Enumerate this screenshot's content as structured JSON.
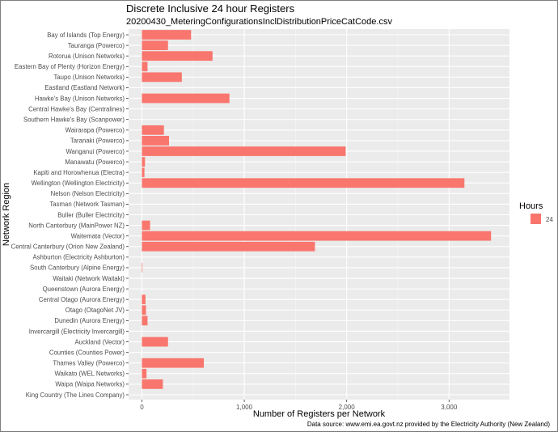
{
  "chart_data": {
    "type": "bar",
    "orientation": "horizontal",
    "title": "Discrete Inclusive 24 hour Registers",
    "subtitle": "20200430_MeteringConfigurationsInclDistributionPriceCatCode.csv",
    "xlabel": "Number of Registers per Network",
    "ylabel": "Network Region",
    "caption": "Data source: www.emi.ea.govt.nz provided by the Electricity Authority (New Zealand)",
    "xlim": [
      -130,
      3590
    ],
    "xticks": [
      0,
      1000,
      2000,
      3000
    ],
    "xtick_labels": [
      "0",
      "1,000",
      "2,000",
      "3,000"
    ],
    "grid": true,
    "legend": {
      "title": "Hours",
      "position": "right",
      "entries": [
        {
          "label": "24",
          "color": "#F8766D"
        }
      ]
    },
    "colors": {
      "bar": "#F8766D",
      "panel": "#EBEBEB",
      "grid_major": "#FFFFFF",
      "grid_minor": "#F5F5F5",
      "text": "#4D4D4D"
    },
    "categories": [
      "Bay of Islands (Top Energy)",
      "Tauranga (Powerco)",
      "Rotorua (Unison Networks)",
      "Eastern Bay of Plenty (Horizon Energy)",
      "Taupo (Unison Networks)",
      "Eastland (Eastland Network)",
      "Hawke's Bay (Unison Networks)",
      "Central Hawke's Bay (Centralines)",
      "Southern Hawke's Bay (Scanpower)",
      "Wairarapa (Powerco)",
      "Taranaki (Powerco)",
      "Wanganui (Powerco)",
      "Manawatu (Powerco)",
      "Kapiti and Horowhenua (Electra)",
      "Wellington (Wellington Electricity)",
      "Nelson (Nelson Electricity)",
      "Tasman (Network Tasman)",
      "Buller (Buller Electricity)",
      "North Canterbury (MainPower NZ)",
      "Waitemata (Vector)",
      "Central Canterbury (Orion New Zealand)",
      "Ashburton (Electricity Ashburton)",
      "South Canterbury (Alpine Energy)",
      "Waitaki (Network Waitaki)",
      "Queenstown (Aurora Energy)",
      "Central Otago (Aurora Energy)",
      "Otago (OtagoNet JV)",
      "Dunedin (Aurora Energy)",
      "Invercargill (Electricity Invercargill)",
      "Auckland (Vector)",
      "Counties (Counties Power)",
      "Thames Valley (Powerco)",
      "Waikato (WEL Networks)",
      "Waipa (Waipa Networks)",
      "King Country (The Lines Company)"
    ],
    "values": [
      480,
      255,
      690,
      55,
      390,
      0,
      855,
      0,
      0,
      215,
      265,
      1990,
      30,
      25,
      3150,
      0,
      0,
      0,
      80,
      3410,
      1690,
      0,
      5,
      0,
      0,
      35,
      40,
      55,
      0,
      255,
      0,
      605,
      45,
      205,
      0
    ]
  }
}
